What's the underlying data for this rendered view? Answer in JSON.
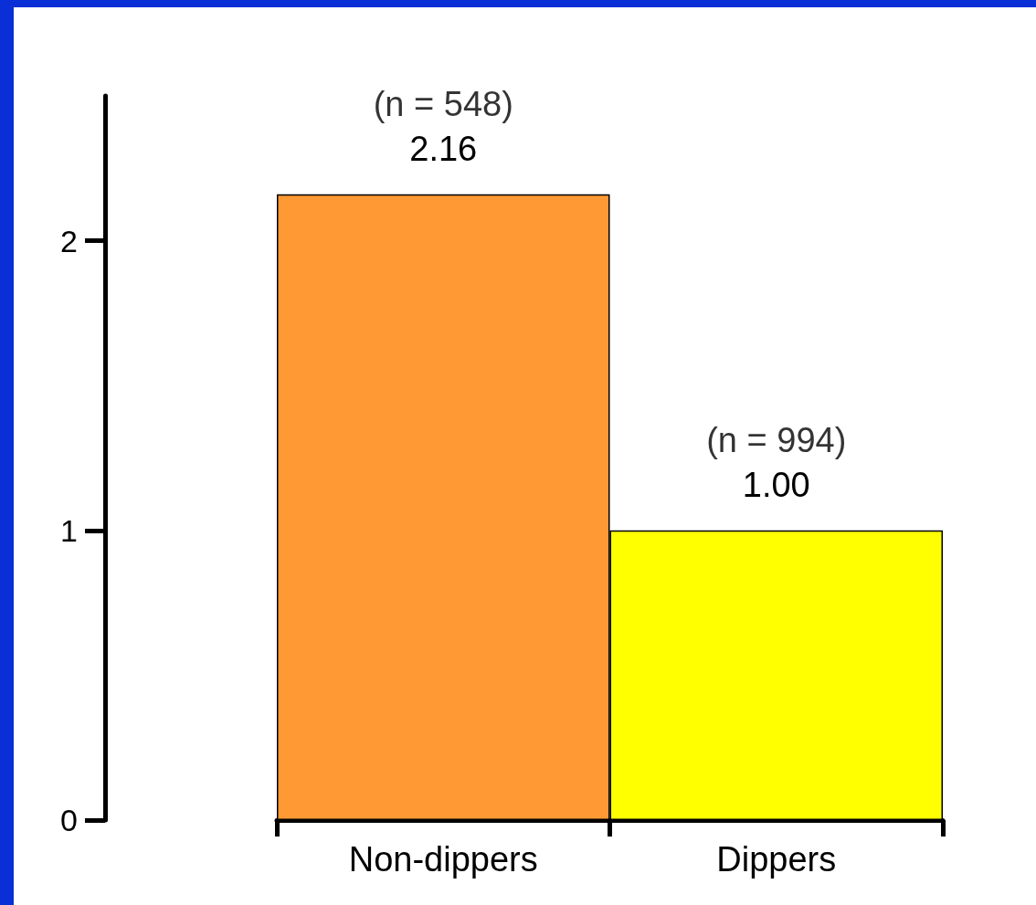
{
  "chart_data": {
    "type": "bar",
    "categories": [
      "Non-dippers",
      "Dippers"
    ],
    "values": [
      2.16,
      1.0
    ],
    "colors": [
      "#ff9933",
      "#ffff00"
    ],
    "value_labels": [
      "2.16",
      "1.00"
    ],
    "annotations": [
      {
        "text": "(n = 548)",
        "x": "Non-dippers",
        "y": 2.16
      },
      {
        "text": "(n = 994)",
        "x": "Dippers",
        "y": 1.0
      }
    ],
    "ylim": [
      0,
      2.5
    ],
    "yticks": [
      0,
      1,
      2
    ],
    "grid": false
  }
}
